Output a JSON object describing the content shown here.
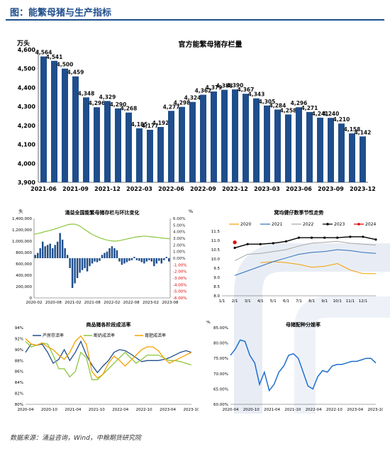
{
  "header": {
    "title": "图：能繁母猪与生产指标"
  },
  "footer": {
    "source": "数据来源：涌益咨询，Wind，中粮期货研究院"
  },
  "colors": {
    "brand": "#1f4e8c",
    "bar": "#1f4e8c",
    "negative": "#e00000"
  },
  "chart_data": [
    {
      "type": "bar",
      "title": "官方能繁母猪存栏量",
      "ylabel": "万头",
      "ylim": [
        3900,
        4600
      ],
      "yticks": [
        3900,
        4000,
        4100,
        4200,
        4300,
        4400,
        4500,
        4600
      ],
      "categories": [
        "2021-06",
        "2021-07",
        "2021-08",
        "2021-09",
        "2021-10",
        "2021-11",
        "2021-12",
        "2022-01",
        "2022-02",
        "2022-03",
        "2022-04",
        "2022-05",
        "2022-06",
        "2022-07",
        "2022-08",
        "2022-09",
        "2022-10",
        "2022-11",
        "2022-12",
        "2023-01",
        "2023-02",
        "2023-03",
        "2023-04",
        "2023-05",
        "2023-06",
        "2023-07",
        "2023-08",
        "2023-09",
        "2023-10",
        "2023-11",
        "2023-12"
      ],
      "xtick_labels": [
        "2021-06",
        "2021-09",
        "2021-12",
        "2022-03",
        "2022-06",
        "2022-09",
        "2022-12",
        "2023-03",
        "2023-06",
        "2023-09",
        "2023-12"
      ],
      "values": [
        4564,
        4541,
        4500,
        4459,
        4348,
        4296,
        4329,
        4290,
        4268,
        4185,
        4177,
        4192,
        4277,
        4298,
        4324,
        4362,
        4379,
        4388,
        4390,
        4367,
        4343,
        4305,
        4284,
        4258,
        4296,
        4271,
        4241,
        4240,
        4210,
        4158,
        4142
      ]
    },
    {
      "type": "bar",
      "title": "涌益全国能繁母猪存栏与环比变化",
      "ylabel": "头",
      "ylabel_right": "%",
      "ylim": [
        0,
        1400000
      ],
      "yticks": [
        "0",
        "200,000",
        "400,000",
        "600,000",
        "800,000",
        "1,000,000",
        "1,200,000",
        "1,400,000"
      ],
      "y2lim": [
        -6,
        6
      ],
      "y2ticks": [
        "6.00%",
        "5.00%",
        "4.00%",
        "3.00%",
        "2.00%",
        "1.00%",
        "0.00%",
        "-1.00%",
        "-2.00%",
        "-3.00%",
        "-4.00%",
        "-5.00%",
        "-6.00%"
      ],
      "xtick_labels": [
        "2020-02",
        "2020-08",
        "2021-02",
        "2021-08",
        "2022-02",
        "2022-08",
        "2023-02",
        "2023-08"
      ],
      "series": [
        {
          "kind": "line",
          "values": [
            1120000,
            1130000,
            1140000,
            1150000,
            1165000,
            1175000,
            1185000,
            1200000,
            1210000,
            1225000,
            1240000,
            1255000,
            1270000,
            1285000,
            1295000,
            1300000,
            1300000,
            1290000,
            1270000,
            1240000,
            1210000,
            1180000,
            1150000,
            1120000,
            1100000,
            1080000,
            1060000,
            1045000,
            1030000,
            1020000,
            1010000,
            1005000,
            1000000,
            1005000,
            1010000,
            1020000,
            1030000,
            1040000,
            1050000,
            1060000,
            1070000,
            1075000,
            1080000,
            1085000,
            1090000,
            1085000,
            1080000,
            1075000,
            1070000,
            1065000,
            1060000,
            1055000,
            1050000,
            1045000,
            1040000
          ]
        },
        {
          "kind": "bar",
          "values": [
            0.5,
            0.8,
            1.5,
            2.5,
            1.8,
            2.0,
            2.2,
            1.5,
            2.0,
            2.5,
            3.8,
            2.8,
            1.5,
            0.5,
            -1.5,
            -4.5,
            -3.8,
            -3.0,
            -2.2,
            -1.8,
            -1.5,
            -2.0,
            -1.2,
            -0.8,
            -0.5,
            -0.6,
            -0.4,
            0.5,
            0.8,
            1.0,
            1.5,
            1.8,
            1.5,
            1.2,
            -0.5,
            -1.0,
            -0.8,
            -0.6,
            -0.4,
            -0.3,
            0.2,
            -0.3,
            -0.4,
            -0.6,
            -0.8,
            -0.5,
            -0.3,
            -0.5,
            -1.2,
            -0.8,
            -0.4,
            -0.8,
            -0.3,
            0.2,
            -0.5
          ]
        }
      ]
    },
    {
      "type": "line",
      "title": "窝均健仔数季节性走势",
      "ylim": [
        8.0,
        11.5
      ],
      "yticks": [
        "8.0",
        "8.5",
        "9.0",
        "9.5",
        "10.0",
        "10.5",
        "11.0",
        "11.5"
      ],
      "xtick_labels": [
        "1/1",
        "2/1",
        "3/1",
        "4/1",
        "5/1",
        "6/1",
        "7/1",
        "8/1",
        "9/1",
        "10/1",
        "11/1",
        "12/1"
      ],
      "series": [
        {
          "name": "2020",
          "color": "#f5a000",
          "values": [
            null,
            null,
            null,
            9.8,
            9.85,
            9.8,
            9.7,
            9.55,
            9.6,
            9.75,
            9.4,
            9.2,
            9.2
          ]
        },
        {
          "name": "2021",
          "color": "#2e6fb8",
          "values": [
            null,
            9.1,
            9.35,
            9.6,
            9.85,
            10.05,
            10.25,
            10.35,
            10.4,
            10.5,
            10.45,
            10.35,
            10.3
          ]
        },
        {
          "name": "2022",
          "color": "#a6a6a6",
          "values": [
            null,
            9.9,
            10.25,
            10.3,
            10.4,
            10.5,
            10.7,
            10.85,
            10.9,
            10.95,
            10.85,
            10.8,
            10.75
          ]
        },
        {
          "name": "2023",
          "color": "#000000",
          "values": [
            null,
            10.6,
            10.8,
            10.8,
            10.85,
            10.95,
            11.15,
            11.15,
            11.15,
            11.15,
            11.2,
            11.2,
            11.05
          ]
        },
        {
          "name": "2024",
          "color": "#e00000",
          "values": [
            null,
            10.9
          ]
        }
      ]
    },
    {
      "type": "line",
      "title": "商品猪各阶段成活率",
      "ylim": [
        80,
        94
      ],
      "yticks": [
        "80%",
        "82%",
        "84%",
        "86%",
        "88%",
        "90%",
        "92%",
        "94%"
      ],
      "xtick_labels": [
        "2020-04",
        "2020-10",
        "2021-04",
        "2021-10",
        "2022-04",
        "2022-10",
        "2023-04",
        "2023-10"
      ],
      "series": [
        {
          "name": "产房存活率",
          "color": "#1f4e8c",
          "values": [
            89.5,
            91.0,
            90.8,
            91.0,
            89.5,
            87.5,
            88.2,
            90.0,
            88.0,
            89.5,
            91.5,
            89.0,
            87.2,
            85.8,
            87.0,
            88.0,
            89.5,
            90.0,
            89.8,
            89.2,
            88.5,
            87.8,
            88.0,
            88.0,
            88.0,
            88.2,
            88.5,
            89.0,
            89.5,
            89.8,
            89.5
          ]
        },
        {
          "name": "断奶成活率",
          "color": "#8dc63f",
          "values": [
            91.5,
            90.5,
            90.8,
            91.2,
            91.0,
            89.0,
            86.5,
            86.5,
            85.0,
            86.0,
            89.5,
            88.5,
            84.5,
            84.5,
            85.5,
            86.5,
            87.5,
            88.5,
            89.5,
            88.5,
            87.5,
            88.2,
            89.0,
            89.0,
            89.0,
            88.5,
            88.0,
            88.0,
            87.8,
            87.5,
            87.2
          ]
        },
        {
          "name": "育肥成活率",
          "color": "#f5a000",
          "values": [
            92.0,
            91.0,
            90.8,
            91.2,
            90.5,
            90.0,
            89.0,
            88.2,
            89.5,
            91.5,
            92.5,
            91.0,
            86.0,
            84.8,
            85.5,
            87.5,
            88.8,
            88.0,
            87.0,
            88.0,
            89.0,
            90.0,
            90.5,
            90.5,
            89.8,
            88.5,
            87.5,
            88.0,
            88.5,
            89.0,
            89.5
          ]
        }
      ]
    },
    {
      "type": "line",
      "title": "母猪配种分娩率",
      "ylabel": "%",
      "ylim": [
        60,
        85
      ],
      "yticks": [
        "60.00%",
        "65.00%",
        "70.00%",
        "75.00%",
        "80.00%",
        "85.00%"
      ],
      "xtick_labels": [
        "2020-04",
        "2020-10",
        "2021-04",
        "2021-10",
        "2022-04",
        "2022-10",
        "2023-04",
        "2023-10"
      ],
      "series": [
        {
          "name": "配种分娩率",
          "color": "#1f6fd1",
          "values": [
            76.0,
            78.0,
            81.0,
            80.5,
            76.0,
            73.5,
            66.5,
            70.5,
            64.5,
            66.5,
            70.5,
            72.5,
            76.0,
            76.5,
            75.0,
            70.5,
            66.0,
            65.0,
            69.0,
            71.0,
            70.5,
            72.5,
            73.0,
            73.0,
            73.5,
            74.0,
            74.0,
            74.5,
            75.0,
            75.0,
            73.5
          ]
        }
      ]
    }
  ]
}
